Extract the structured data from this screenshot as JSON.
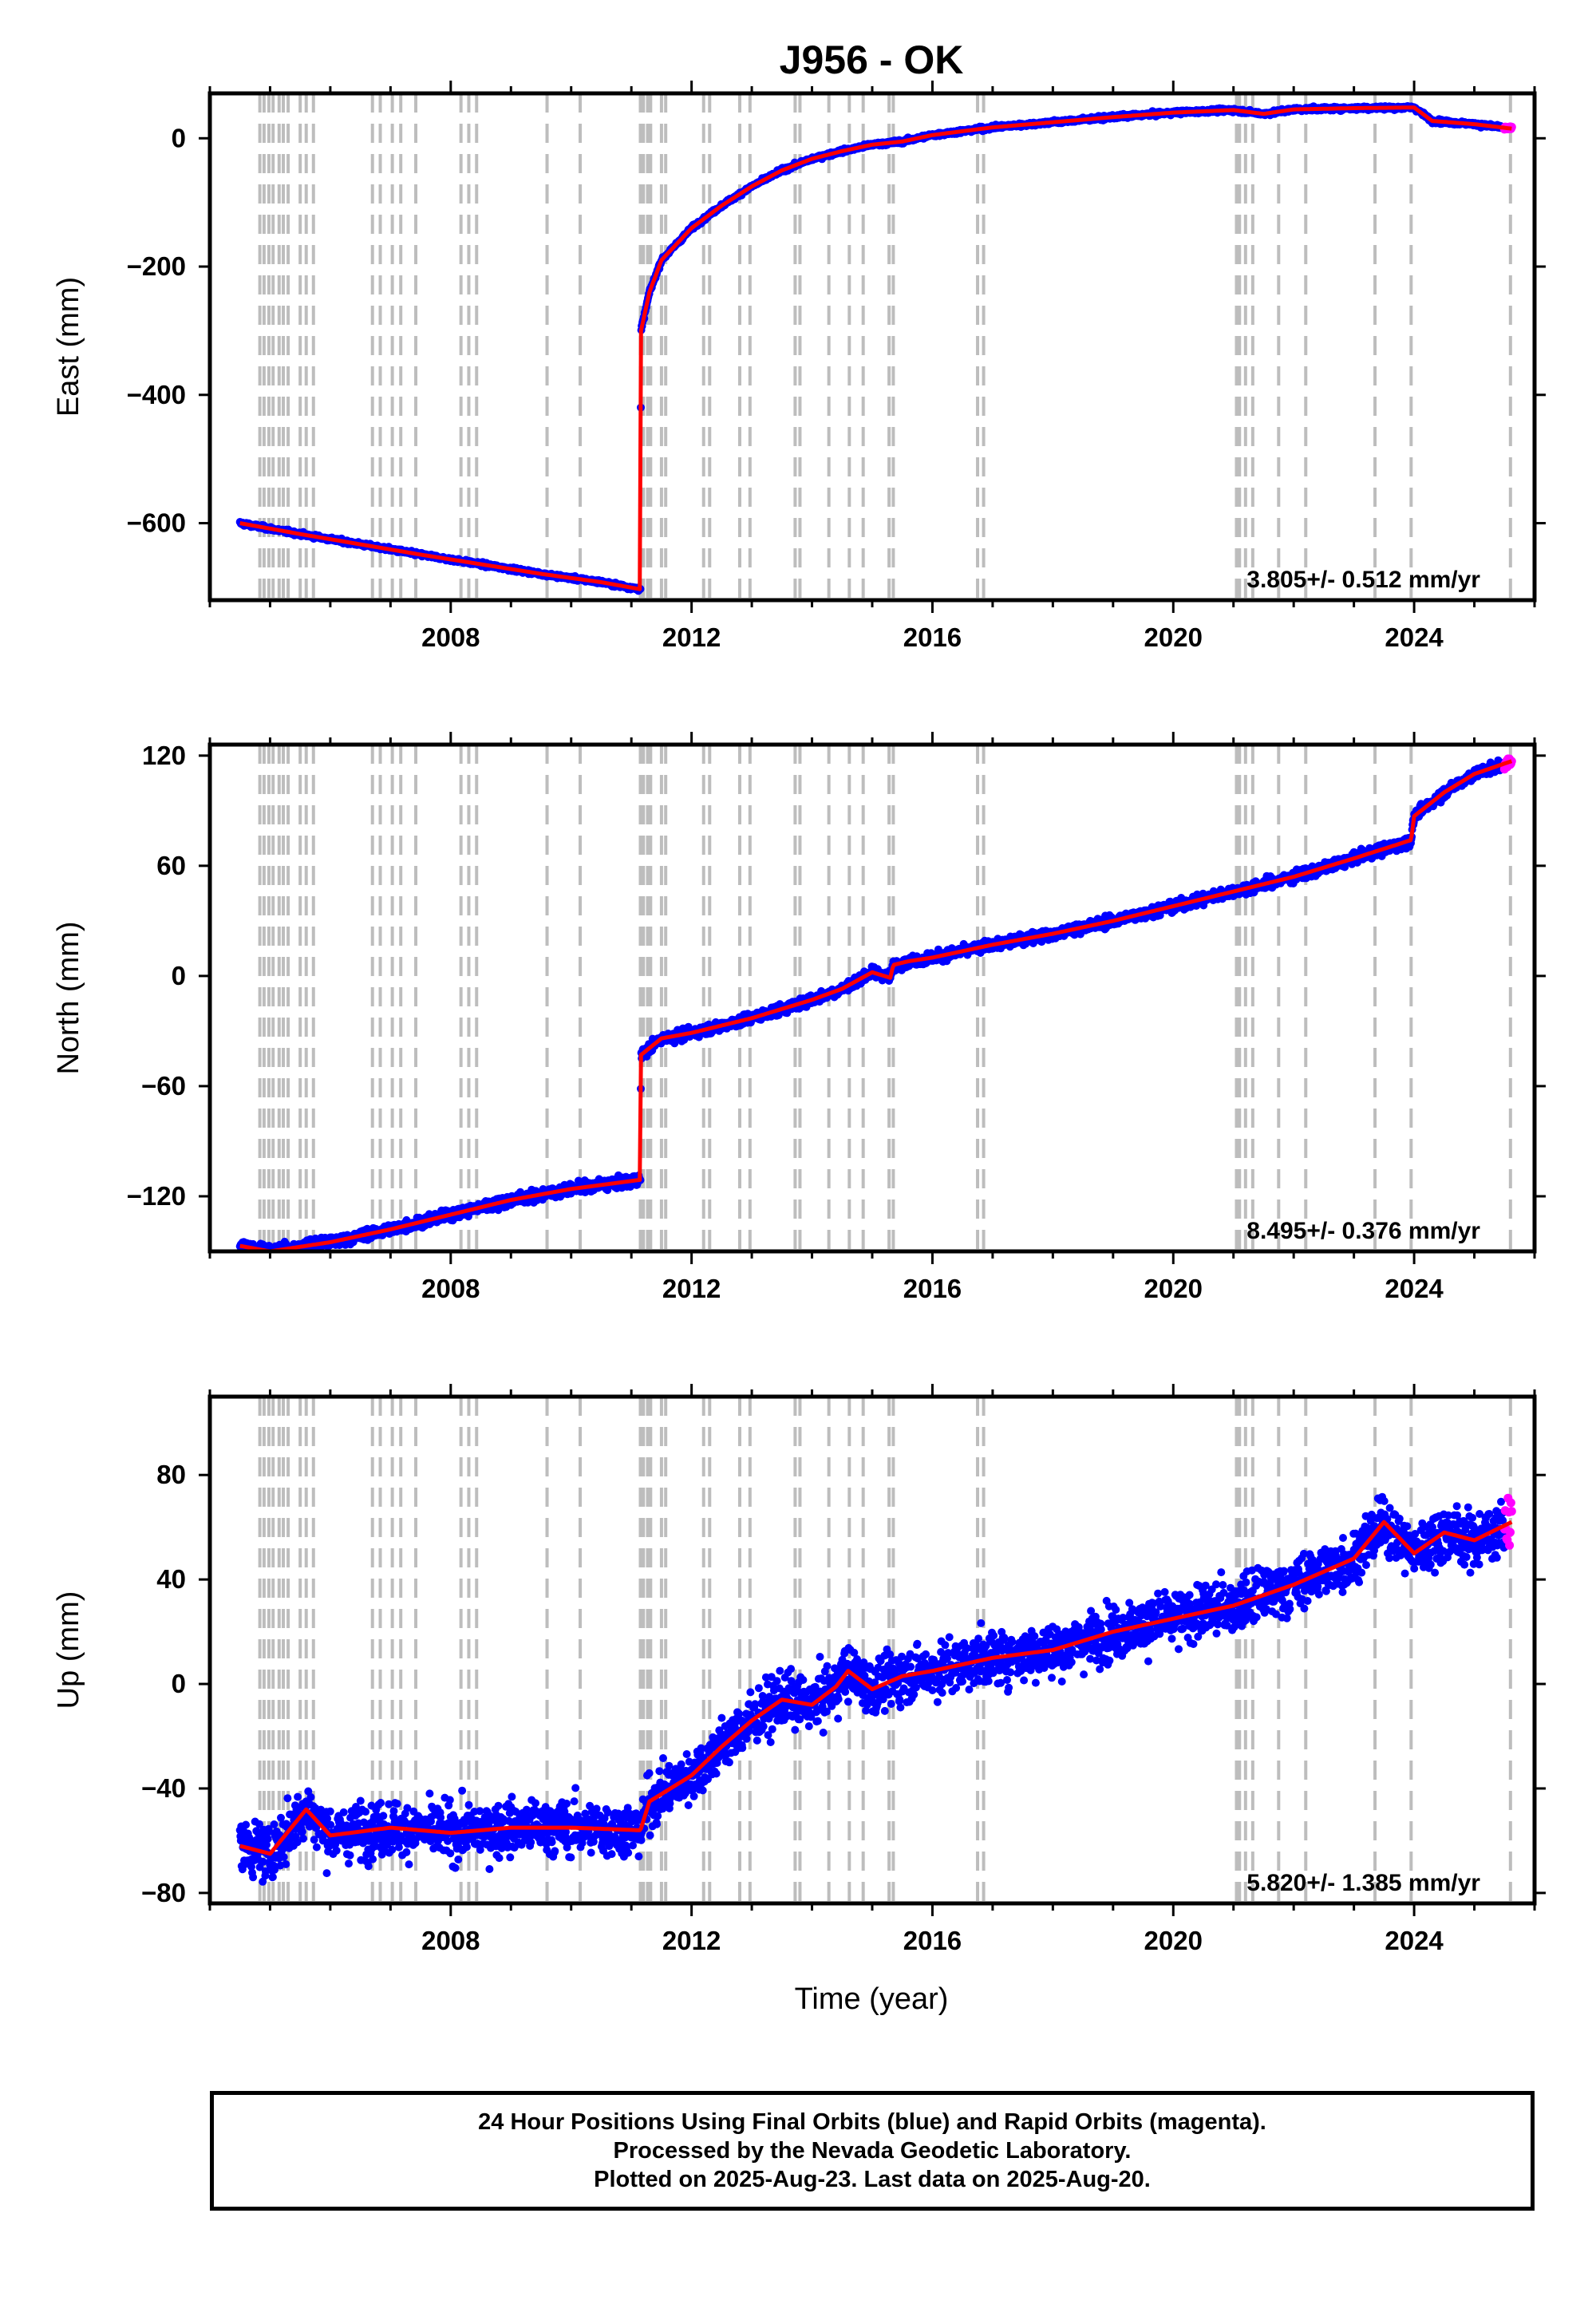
{
  "title": "J956 - OK",
  "xlabel": "Time (year)",
  "footer": {
    "line1": "24 Hour Positions Using Final Orbits (blue) and Rapid Orbits (magenta).",
    "line2": "Processed by the Nevada Geodetic Laboratory.",
    "line3": "Plotted on 2025-Aug-23. Last data on 2025-Aug-20."
  },
  "colors": {
    "final_orbits": "#0000ff",
    "rapid_orbits": "#ff00ff",
    "model_fit": "#ff0000",
    "event_lines": "#bdbdbd"
  },
  "event_lines_years": [
    2004.83,
    2004.9,
    2004.98,
    2005.05,
    2005.15,
    2005.22,
    2005.3,
    2005.5,
    2005.6,
    2005.72,
    2006.7,
    2006.83,
    2007.03,
    2007.17,
    2007.42,
    2008.17,
    2008.3,
    2008.43,
    2009.6,
    2010.15,
    2011.15,
    2011.2,
    2011.27,
    2011.32,
    2011.5,
    2011.57,
    2012.2,
    2012.3,
    2012.8,
    2012.97,
    2013.72,
    2013.8,
    2014.28,
    2014.62,
    2014.85,
    2015.28,
    2015.35,
    2016.75,
    2016.85,
    2021.05,
    2021.1,
    2021.2,
    2021.32,
    2021.75,
    2022.2,
    2023.35,
    2023.95,
    2025.6
  ],
  "chart_data": [
    {
      "type": "scatter",
      "component": "East",
      "ylabel": "East (mm)",
      "ylim": [
        -720,
        70
      ],
      "yticks": [
        0,
        -200,
        -400,
        -600
      ],
      "xlim": [
        2004.0,
        2026.0
      ],
      "xticks": [
        2008,
        2012,
        2016,
        2020,
        2024
      ],
      "velocity": "3.805+/- 0.512 mm/yr",
      "noise": 2.5,
      "grid": false,
      "series": [
        {
          "role": "model",
          "x": [
            2004.5,
            2005.5,
            2006.5,
            2007.5,
            2008.5,
            2009.5,
            2010.5,
            2011.15,
            2011.16,
            2011.3,
            2011.5,
            2012.0,
            2012.5,
            2013.0,
            2013.5,
            2014.0,
            2014.5,
            2015.0,
            2015.5,
            2016.0,
            2017.0,
            2018.0,
            2019.0,
            2020.0,
            2021.0,
            2021.5,
            2022.0,
            2023.0,
            2024.0,
            2024.3,
            2025.0,
            2025.62
          ],
          "values": [
            -600,
            -617,
            -633,
            -649,
            -664,
            -679,
            -692,
            -703,
            -300,
            -240,
            -190,
            -140,
            -105,
            -75,
            -50,
            -32,
            -20,
            -10,
            -5,
            5,
            17,
            25,
            33,
            40,
            44,
            38,
            45,
            47,
            48,
            27,
            22,
            15
          ]
        }
      ]
    },
    {
      "type": "scatter",
      "component": "North",
      "ylabel": "North (mm)",
      "ylim": [
        -150,
        126
      ],
      "yticks": [
        120,
        60,
        0,
        -60,
        -120
      ],
      "xlim": [
        2004.0,
        2026.0
      ],
      "xticks": [
        2008,
        2012,
        2016,
        2020,
        2024
      ],
      "velocity": "8.495+/- 0.376 mm/yr",
      "noise": 2.5,
      "grid": false,
      "series": [
        {
          "role": "model",
          "x": [
            2004.5,
            2005.0,
            2006.0,
            2007.0,
            2008.0,
            2009.0,
            2010.0,
            2011.15,
            2011.16,
            2011.5,
            2012.0,
            2013.0,
            2014.0,
            2014.5,
            2015.0,
            2015.3,
            2015.35,
            2015.6,
            2016.0,
            2017.0,
            2018.0,
            2019.0,
            2020.0,
            2021.0,
            2022.0,
            2023.0,
            2023.95,
            2024.0,
            2024.5,
            2025.0,
            2025.62
          ],
          "values": [
            -147,
            -150,
            -145,
            -138,
            -130,
            -122,
            -116,
            -111,
            -43,
            -34,
            -31,
            -23,
            -13,
            -7,
            2,
            -1,
            6,
            8,
            10,
            17,
            23,
            30,
            38,
            46,
            54,
            64,
            74,
            87,
            100,
            110,
            117
          ]
        }
      ]
    },
    {
      "type": "scatter",
      "component": "Up",
      "ylabel": "Up (mm)",
      "ylim": [
        -84,
        110
      ],
      "yticks": [
        80,
        40,
        0,
        -40,
        -80
      ],
      "xlim": [
        2004.0,
        2026.0
      ],
      "xticks": [
        2008,
        2012,
        2016,
        2020,
        2024
      ],
      "velocity": "5.820+/- 1.385 mm/yr",
      "noise": 8.5,
      "grid": false,
      "series": [
        {
          "role": "model",
          "x": [
            2004.5,
            2005.0,
            2005.6,
            2006.0,
            2007.0,
            2008.0,
            2009.0,
            2010.0,
            2011.15,
            2011.3,
            2012.0,
            2012.5,
            2013.0,
            2013.5,
            2014.0,
            2014.4,
            2014.6,
            2015.0,
            2015.5,
            2016.0,
            2017.0,
            2018.0,
            2019.0,
            2020.0,
            2021.0,
            2022.0,
            2023.0,
            2023.5,
            2024.0,
            2024.5,
            2025.0,
            2025.62
          ],
          "values": [
            -62,
            -65,
            -48,
            -58,
            -55,
            -57,
            -55,
            -55,
            -56,
            -45,
            -35,
            -24,
            -14,
            -6,
            -8,
            -1,
            5,
            -2,
            3,
            5,
            10,
            13,
            20,
            25,
            30,
            38,
            48,
            62,
            50,
            58,
            55,
            62
          ]
        }
      ]
    }
  ]
}
